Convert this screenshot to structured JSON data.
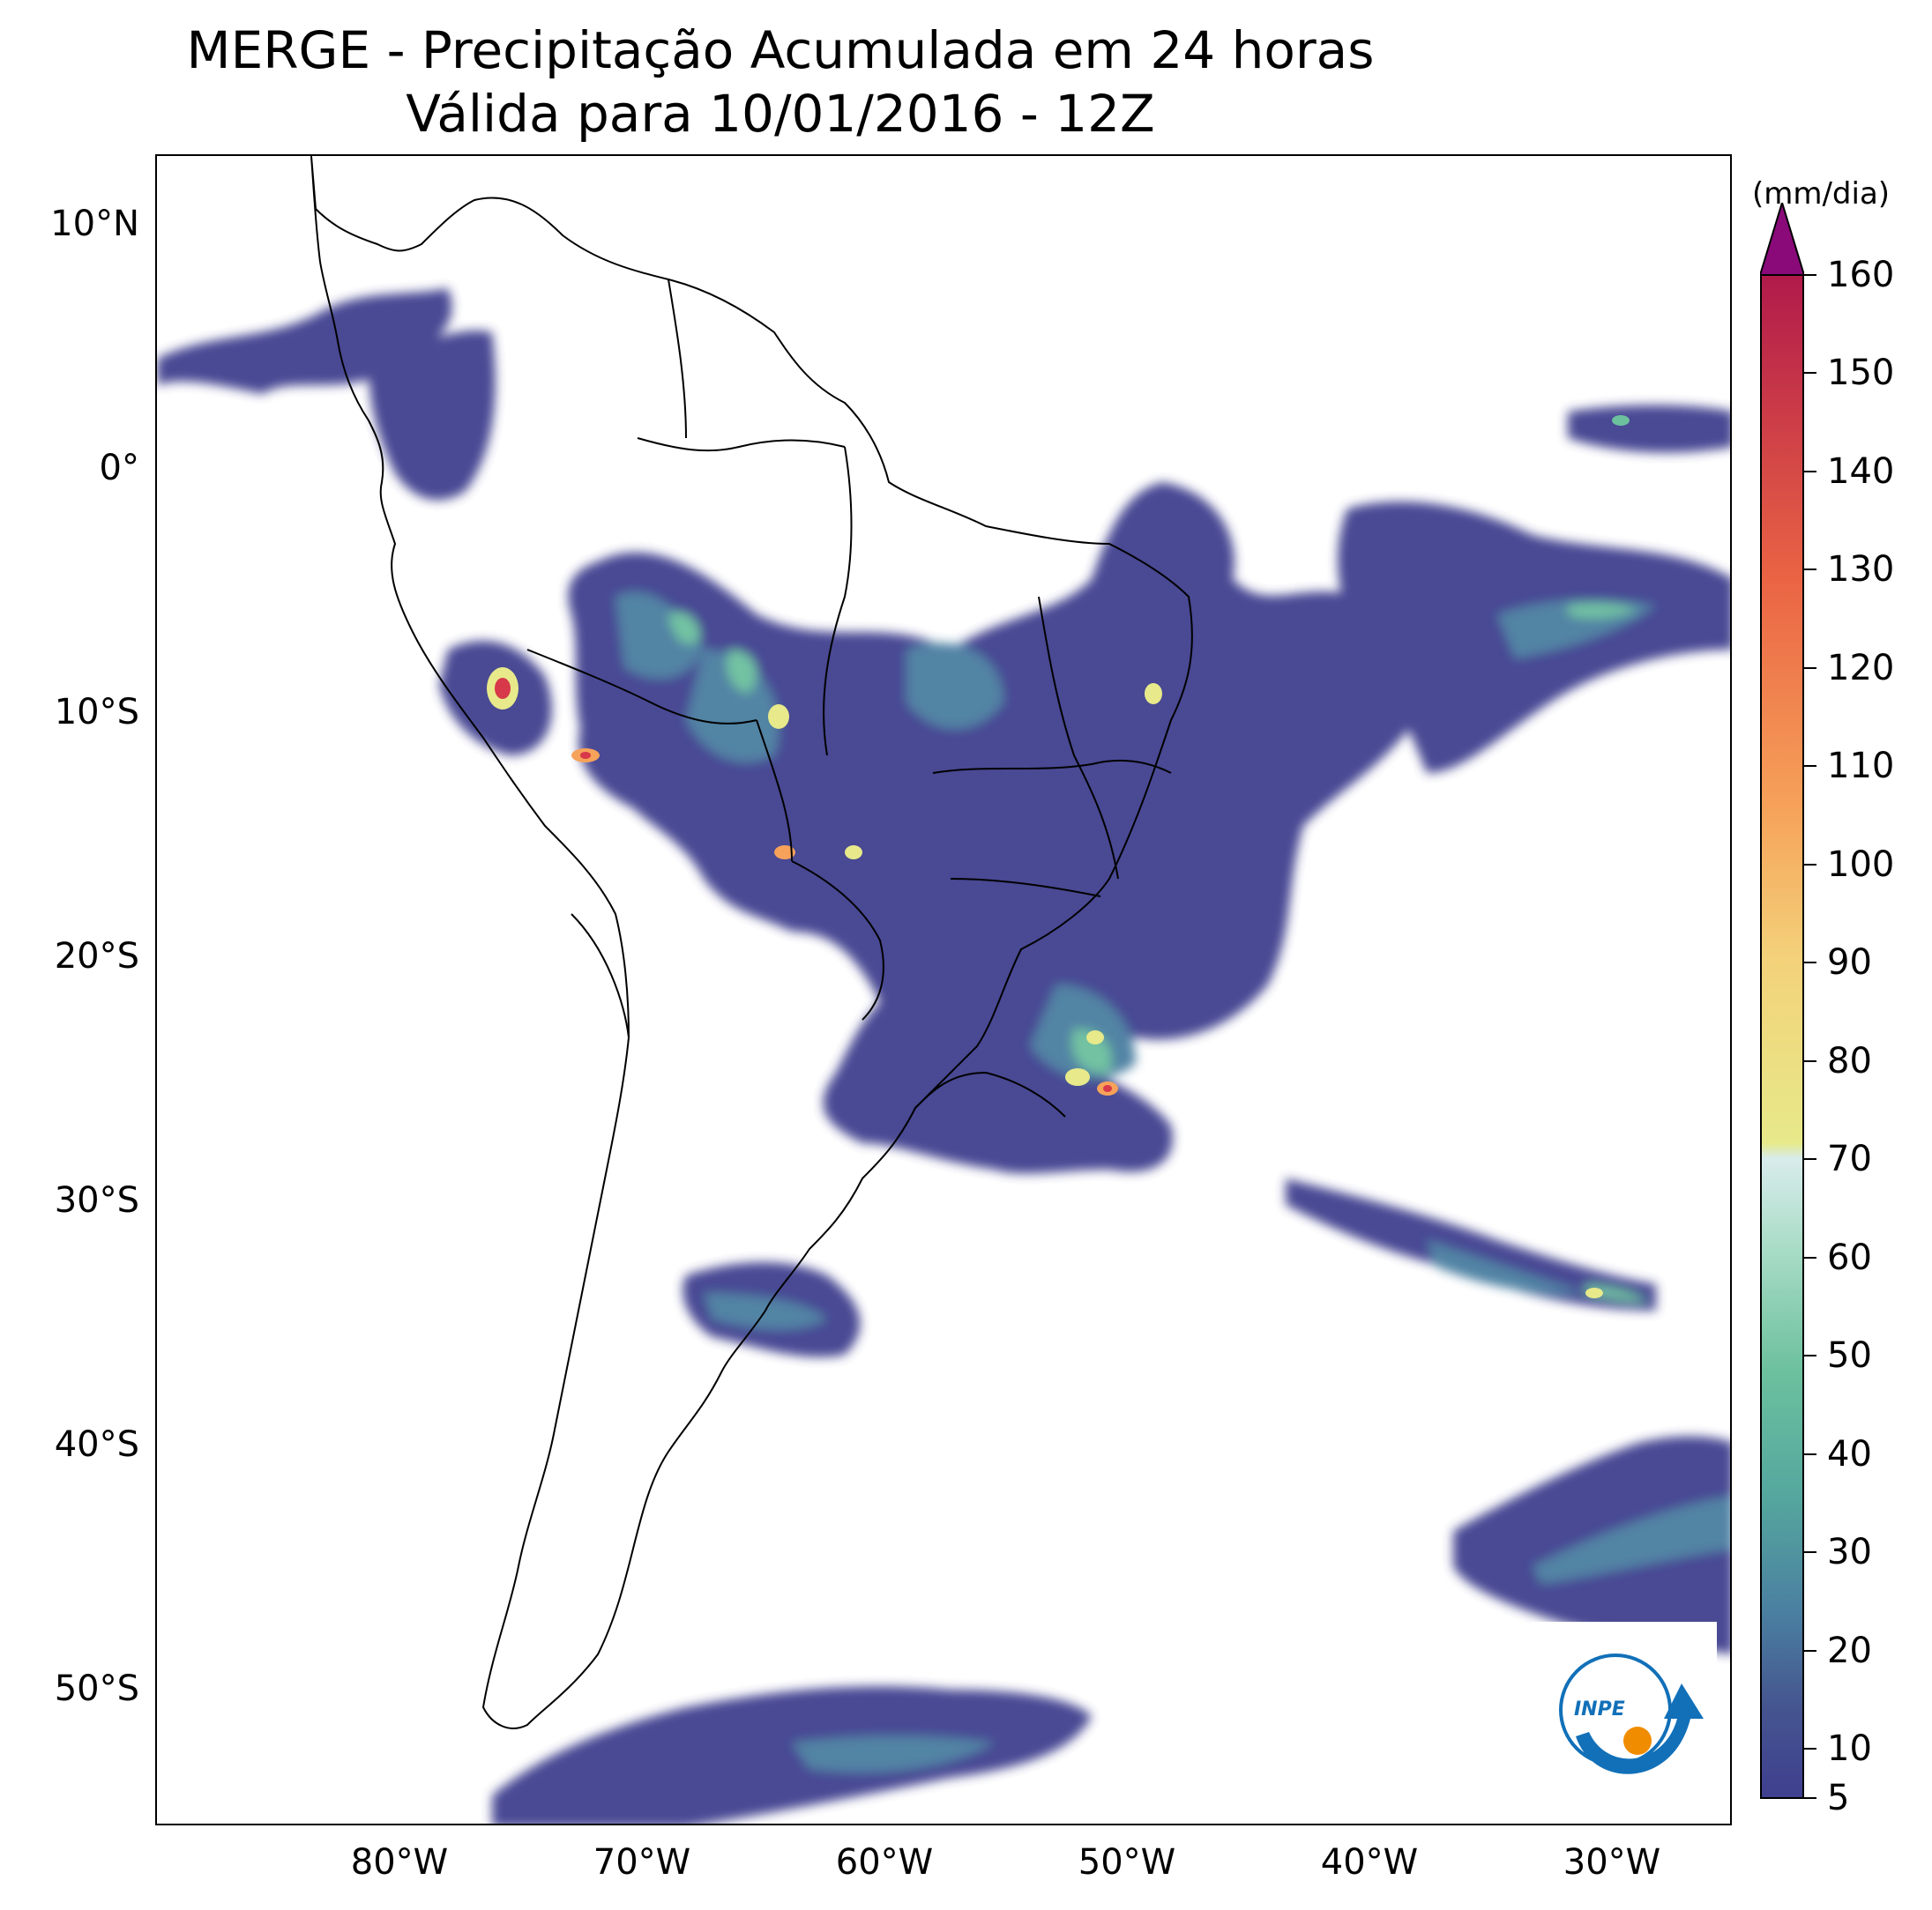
{
  "title": {
    "line1": "MERGE - Precipitação Acumulada em 24 horas",
    "line2": "Válida para 10/01/2016 - 12Z"
  },
  "map": {
    "lon_range": [
      -90,
      -25
    ],
    "lat_range": [
      -56,
      13
    ],
    "lat_labels": [
      "10°N",
      "0°",
      "10°S",
      "20°S",
      "30°S",
      "40°S",
      "50°S"
    ],
    "lat_values": [
      10,
      0,
      -10,
      -20,
      -30,
      -40,
      -50
    ],
    "lon_labels": [
      "80°W",
      "70°W",
      "60°W",
      "50°W",
      "40°W",
      "30°W"
    ],
    "lon_values": [
      -80,
      -70,
      -60,
      -50,
      -40,
      -30
    ]
  },
  "colorbar": {
    "unit": "(mm/dia)",
    "tick_labels": [
      "5",
      "10",
      "20",
      "30",
      "40",
      "50",
      "60",
      "70",
      "80",
      "90",
      "100",
      "110",
      "120",
      "130",
      "140",
      "150",
      "160"
    ],
    "tick_values": [
      5,
      10,
      20,
      30,
      40,
      50,
      60,
      70,
      80,
      90,
      100,
      110,
      120,
      130,
      140,
      150,
      160
    ],
    "extend": "max",
    "colors": {
      "low": "#3f3f8f",
      "mid_low": "#4a7ea0",
      "mid": "#6cc09e",
      "light": "#d8ecec",
      "yellow": "#e7e98a",
      "orange": "#f6a25a",
      "red": "#d7384a",
      "top": "#8a0a7a"
    }
  },
  "logo": {
    "text": "INPE",
    "colors": {
      "ring": "#1170b8",
      "dot": "#f08c00"
    }
  }
}
